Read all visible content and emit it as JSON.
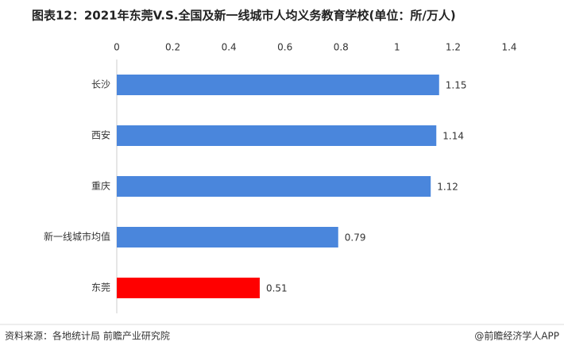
{
  "chart_data": {
    "type": "bar",
    "orientation": "horizontal",
    "title": "图表12：2021年东莞V.S.全国及新一线城市人均义务教育学校(单位：所/万人)",
    "categories": [
      "长沙",
      "西安",
      "重庆",
      "新一线城市均值",
      "东莞"
    ],
    "values": [
      1.15,
      1.14,
      1.12,
      0.79,
      0.51
    ],
    "colors": [
      "#4a86dc",
      "#4a86dc",
      "#4a86dc",
      "#4a86dc",
      "#ff0000"
    ],
    "xlim": [
      0,
      1.4
    ],
    "xticks": [
      0,
      0.2,
      0.4,
      0.6,
      0.8,
      1,
      1.2,
      1.4
    ],
    "source": "资料来源：各地统计局 前瞻产业研究院",
    "credit": "@前瞻经济学人APP"
  }
}
